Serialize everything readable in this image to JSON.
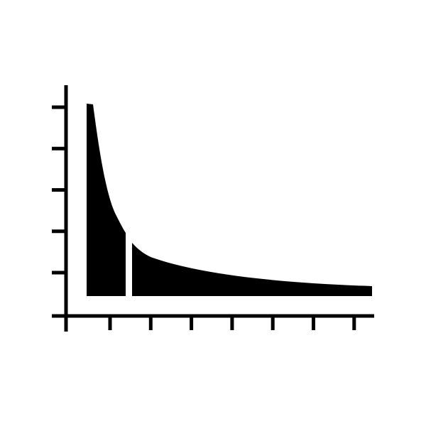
{
  "icon": {
    "name": "long-tail-distribution-chart-icon",
    "foreground_color": "#000000",
    "background_color": "#ffffff",
    "y_tick_count": 5,
    "x_tick_count": 7,
    "highlighted_segment": "head"
  }
}
